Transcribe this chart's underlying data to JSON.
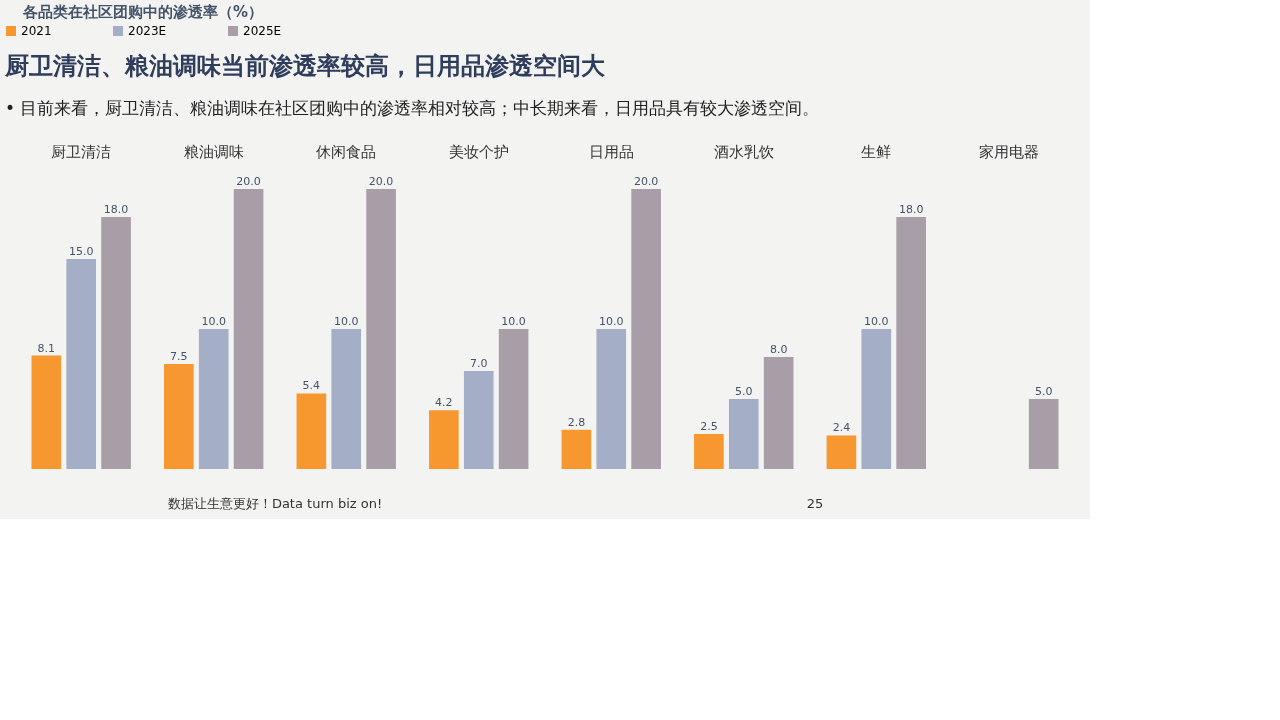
{
  "chart_data": {
    "type": "bar",
    "title": "厨卫清洁、粮油调味当前渗透率较高，日用品渗透空间大",
    "subtitle": "• 目前来看，厨卫清洁、粮油调味在社区团购中的渗透率相对较高；中长期来看，日用品具有较大渗透空间。",
    "legend_title": "各品类在社区团购中的渗透率（%）",
    "categories": [
      "厨卫清洁",
      "粮油调味",
      "休闲食品",
      "美妆个护",
      "日用品",
      "酒水乳饮",
      "生鲜",
      "家用电器"
    ],
    "series": [
      {
        "name": "2021",
        "color": "#f7972f",
        "values": [
          8.1,
          7.5,
          5.4,
          4.2,
          2.8,
          2.5,
          2.4,
          null
        ],
        "value_labels": [
          "8.1",
          "7.5",
          "5.4",
          "4.2",
          "2.8",
          "2.5",
          "2.4",
          null
        ]
      },
      {
        "name": "2023E",
        "color": "#a4aec6",
        "values": [
          15,
          10,
          10,
          7,
          10,
          5,
          10,
          null
        ],
        "value_labels": [
          "15.0",
          "10.0",
          "10.0",
          "7.0",
          "10.0",
          "5.0",
          "10.0",
          null
        ]
      },
      {
        "name": "2025E",
        "color": "#a89ea8",
        "values": [
          18,
          20,
          20,
          10,
          20,
          8,
          18,
          5
        ],
        "value_labels": [
          "18.0",
          "20.0",
          "20.0",
          "10.0",
          "20.0",
          "8.0",
          "18.0",
          "5.0"
        ]
      }
    ],
    "legend": "top",
    "annotations": [
      "数据让生意更好！Data turn biz on!",
      "25"
    ]
  }
}
